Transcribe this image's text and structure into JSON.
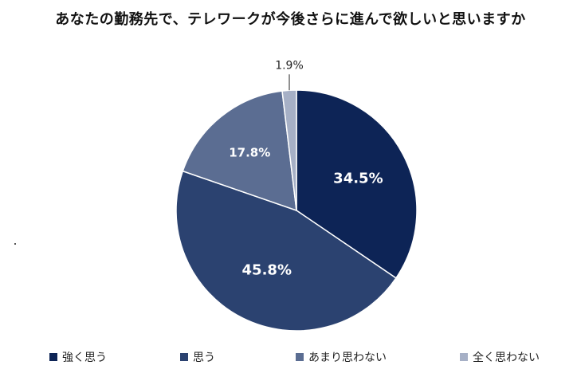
{
  "chart_data": {
    "type": "pie",
    "title": "あなたの勤務先で、テレワークが今後さらに進んで欲しいと思いますか",
    "slices": [
      {
        "label": "強く思う",
        "value": 34.5,
        "display": "34.5%",
        "color": "#0d2456"
      },
      {
        "label": "思う",
        "value": 45.8,
        "display": "45.8%",
        "color": "#2b4270"
      },
      {
        "label": "あまり思わない",
        "value": 17.8,
        "display": "17.8%",
        "color": "#5b6d92"
      },
      {
        "label": "全く思わない",
        "value": 1.9,
        "display": "1.9%",
        "color": "#a6b0c6"
      }
    ],
    "legend_position": "bottom"
  }
}
